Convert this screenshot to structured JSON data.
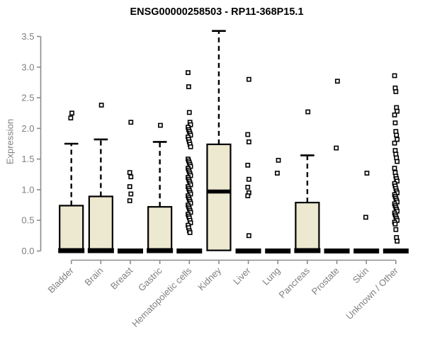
{
  "chart_data": {
    "type": "boxplot",
    "title": "ENSG00000258503 - RP11-368P15.1",
    "xlabel": "",
    "ylabel": "Expression",
    "ylim": [
      0,
      3.6
    ],
    "y_ticks": [
      0.0,
      0.5,
      1.0,
      1.5,
      2.0,
      2.5,
      3.0,
      3.5
    ],
    "grid": false,
    "legend": "none",
    "categories": [
      "Bladder",
      "Brain",
      "Breast",
      "Gastric",
      "Hematopoietic cells",
      "Kidney",
      "Liver",
      "Lung",
      "Pancreas",
      "Prostate",
      "Skin",
      "Unknown / Other"
    ],
    "boxes": [
      {
        "category": "Bladder",
        "q1": 0.0,
        "median": 0.02,
        "q3": 0.74,
        "whisker_low": 0.0,
        "whisker_high": 1.75,
        "outliers": [
          2.25,
          2.17
        ]
      },
      {
        "category": "Brain",
        "q1": 0.0,
        "median": 0.02,
        "q3": 0.89,
        "whisker_low": 0.0,
        "whisker_high": 1.82,
        "outliers": [
          2.38
        ]
      },
      {
        "category": "Breast",
        "q1": 0.0,
        "median": 0.0,
        "q3": 0.0,
        "whisker_low": 0.0,
        "whisker_high": 0.0,
        "outliers": [
          2.1,
          1.28,
          1.21,
          1.05,
          0.93,
          0.82
        ]
      },
      {
        "category": "Gastric",
        "q1": 0.0,
        "median": 0.02,
        "q3": 0.72,
        "whisker_low": 0.0,
        "whisker_high": 1.78,
        "outliers": [
          2.05
        ]
      },
      {
        "category": "Hematopoietic cells",
        "q1": 0.0,
        "median": 0.0,
        "q3": 0.0,
        "whisker_low": 0.0,
        "whisker_high": 0.0,
        "outliers": [
          2.91,
          2.68,
          2.26,
          2.1,
          2.06,
          2.02,
          1.98,
          1.95,
          1.92,
          1.89,
          1.86,
          1.82,
          1.78,
          1.74,
          1.7,
          1.5,
          1.47,
          1.44,
          1.41,
          1.38,
          1.35,
          1.32,
          1.29,
          1.26,
          1.23,
          1.2,
          1.17,
          1.14,
          1.11,
          1.08,
          1.05,
          1.02,
          0.99,
          0.96,
          0.93,
          0.9,
          0.87,
          0.84,
          0.81,
          0.78,
          0.75,
          0.72,
          0.69,
          0.66,
          0.63,
          0.6,
          0.57,
          0.54,
          0.5,
          0.46,
          0.42,
          0.38,
          0.33,
          0.3
        ]
      },
      {
        "category": "Kidney",
        "q1": 0.01,
        "median": 0.97,
        "q3": 1.74,
        "whisker_low": 0.0,
        "whisker_high": 3.59,
        "outliers": []
      },
      {
        "category": "Liver",
        "q1": 0.0,
        "median": 0.0,
        "q3": 0.0,
        "whisker_low": 0.0,
        "whisker_high": 0.0,
        "outliers": [
          2.8,
          1.9,
          1.78,
          1.4,
          1.17,
          1.04,
          0.95,
          0.9,
          0.25
        ]
      },
      {
        "category": "Lung",
        "q1": 0.0,
        "median": 0.0,
        "q3": 0.0,
        "whisker_low": 0.0,
        "whisker_high": 0.0,
        "outliers": [
          1.48,
          1.27
        ]
      },
      {
        "category": "Pancreas",
        "q1": 0.0,
        "median": 0.02,
        "q3": 0.79,
        "whisker_low": 0.0,
        "whisker_high": 1.56,
        "outliers": [
          2.27
        ]
      },
      {
        "category": "Prostate",
        "q1": 0.0,
        "median": 0.0,
        "q3": 0.0,
        "whisker_low": 0.0,
        "whisker_high": 0.0,
        "outliers": [
          2.77,
          1.68
        ]
      },
      {
        "category": "Skin",
        "q1": 0.0,
        "median": 0.0,
        "q3": 0.0,
        "whisker_low": 0.0,
        "whisker_high": 0.0,
        "outliers": [
          1.27,
          0.55
        ]
      },
      {
        "category": "Unknown / Other",
        "q1": 0.0,
        "median": 0.0,
        "q3": 0.0,
        "whisker_low": 0.0,
        "whisker_high": 0.0,
        "outliers": [
          2.86,
          2.66,
          2.6,
          2.34,
          2.28,
          2.22,
          2.09,
          1.95,
          1.89,
          1.82,
          1.76,
          1.64,
          1.58,
          1.52,
          1.46,
          1.35,
          1.28,
          1.22,
          1.18,
          1.14,
          1.1,
          1.06,
          1.02,
          0.98,
          0.95,
          0.92,
          0.89,
          0.86,
          0.83,
          0.8,
          0.77,
          0.74,
          0.71,
          0.68,
          0.65,
          0.62,
          0.59,
          0.56,
          0.53,
          0.5,
          0.47,
          0.44,
          0.35,
          0.22,
          0.16
        ]
      }
    ],
    "colors": {
      "box_fill": "#EDE8D0",
      "box_stroke": "#000000",
      "median": "#000000",
      "outlier_stroke": "#000000",
      "outlier_fill": "#ffffff",
      "axis_line": "#8c8c8c",
      "axis_text": "#7f7f7f",
      "title_text": "#000000",
      "background": "#ffffff"
    }
  }
}
